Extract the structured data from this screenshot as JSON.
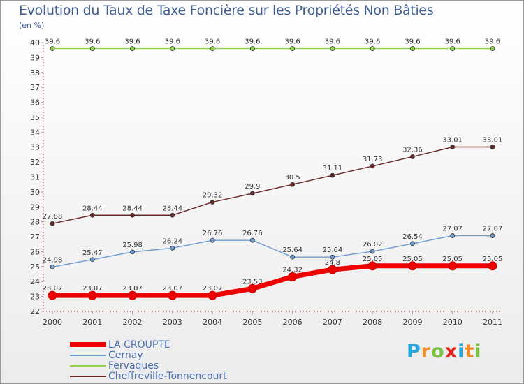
{
  "title": "Evolution du Taux de Taxe Foncière sur les Propriétés Non Bâties",
  "unit_label": "(en %)",
  "logo": {
    "letters": [
      "P",
      "r",
      "o",
      "x",
      "i",
      "t",
      "i"
    ],
    "colors": [
      "#2aa6de",
      "#f28c28",
      "#7ac143",
      "#e2231a",
      "#2aa6de",
      "#f28c28",
      "#7ac143"
    ]
  },
  "chart_data": {
    "type": "line",
    "x": [
      "2000",
      "2001",
      "2002",
      "2003",
      "2004",
      "2005",
      "2006",
      "2007",
      "2008",
      "2009",
      "2010",
      "2011"
    ],
    "ylim": [
      22,
      40
    ],
    "yticks": [
      22,
      23,
      24,
      25,
      26,
      27,
      28,
      29,
      30,
      31,
      32,
      33,
      34,
      35,
      36,
      37,
      38,
      39,
      40
    ],
    "grid": false,
    "legend_position": "bottom-left",
    "series": [
      {
        "name": "LA CROUPTE",
        "color": "#ee0000",
        "values": [
          23.07,
          23.07,
          23.07,
          23.07,
          23.07,
          23.53,
          24.32,
          24.8,
          25.05,
          25.05,
          25.05,
          25.05
        ],
        "labels": [
          "23.07",
          "23.07",
          "23.07",
          "23.07",
          "23.07",
          "23.53",
          "24.32",
          "24.8",
          "25.05",
          "25.05",
          "25.05",
          "25.05"
        ]
      },
      {
        "name": "Cernay",
        "color": "#6d9cd3",
        "values": [
          24.98,
          25.47,
          25.98,
          26.24,
          26.76,
          26.76,
          25.64,
          25.64,
          26.02,
          26.54,
          27.07,
          27.07
        ],
        "labels": [
          "24.98",
          "25.47",
          "25.98",
          "26.24",
          "26.76",
          "26.76",
          "25.64",
          "25.64",
          "26.02",
          "26.54",
          "27.07",
          "27.07"
        ]
      },
      {
        "name": "Fervaques",
        "color": "#8fd14f",
        "values": [
          39.6,
          39.6,
          39.6,
          39.6,
          39.6,
          39.6,
          39.6,
          39.6,
          39.6,
          39.6,
          39.6,
          39.6
        ],
        "labels": [
          "39.6",
          "39.6",
          "39.6",
          "39.6",
          "39.6",
          "39.6",
          "39.6",
          "39.6",
          "39.6",
          "39.6",
          "39.6",
          "39.6"
        ]
      },
      {
        "name": "Cheffreville-Tonnencourt",
        "color": "#6b2a2a",
        "values": [
          27.88,
          28.44,
          28.44,
          28.44,
          29.32,
          29.9,
          30.5,
          31.11,
          31.73,
          32.36,
          33.01,
          33.01
        ],
        "labels": [
          "27.88",
          "28.44",
          "28.44",
          "28.44",
          "29.32",
          "29.9",
          "30.5",
          "31.11",
          "31.73",
          "32.36",
          "33.01",
          "33.01"
        ]
      }
    ]
  }
}
